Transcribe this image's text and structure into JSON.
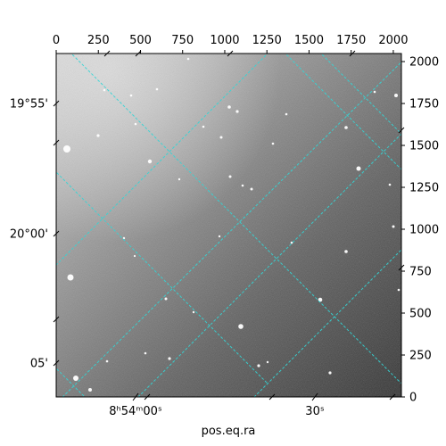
{
  "chart_data": {
    "type": "image",
    "xlabel": "pos.eq.ra",
    "ylabel": "",
    "pixel_axes": {
      "x_ticks": [
        "0",
        "250",
        "500",
        "750",
        "1000",
        "1250",
        "1500",
        "1750",
        "2000"
      ],
      "y_ticks": [
        "0",
        "250",
        "500",
        "750",
        "1000",
        "1250",
        "1500",
        "1750",
        "2000"
      ],
      "xlim": [
        0,
        2048
      ],
      "ylim": [
        0,
        2048
      ]
    },
    "world_axes": {
      "ra_ticks": [
        "8ʰ54ᵐ00ˢ",
        "30ˢ"
      ],
      "dec_ticks": [
        "19°55'",
        "20°00'",
        "05'"
      ]
    },
    "grid": true,
    "grid_color": "#33d6d6",
    "image_colormap": "gray"
  }
}
